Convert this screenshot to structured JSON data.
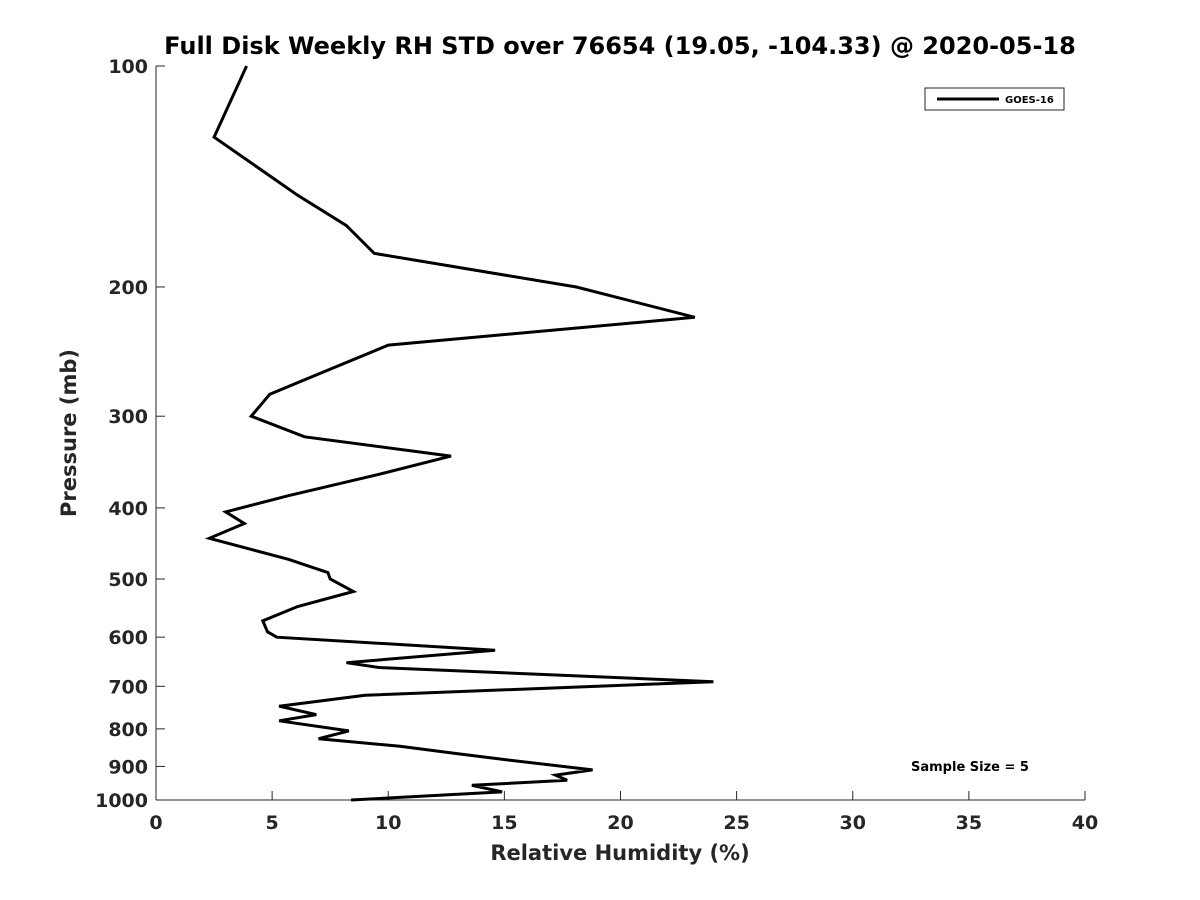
{
  "chart_data": {
    "type": "line",
    "title": "Full Disk Weekly RH STD over 76654 (19.05, -104.33) @ 2020-05-18",
    "xlabel": "Relative Humidity (%)",
    "ylabel": "Pressure (mb)",
    "xlim": [
      0,
      40
    ],
    "ylim": [
      100,
      1000
    ],
    "yscale": "log",
    "y_reversed": true,
    "xticks": [
      0,
      5,
      10,
      15,
      20,
      25,
      30,
      35,
      40
    ],
    "yticks": [
      100,
      200,
      300,
      400,
      500,
      600,
      700,
      800,
      900,
      1000
    ],
    "grid": false,
    "legend_position": "top-right",
    "annotation": "Sample Size = 5",
    "series": [
      {
        "name": "GOES-16",
        "color": "#000000",
        "points": [
          [
            3.9,
            100
          ],
          [
            2.5,
            125
          ],
          [
            6.1,
            150
          ],
          [
            8.2,
            165
          ],
          [
            9.4,
            180
          ],
          [
            18.1,
            200
          ],
          [
            23.2,
            220
          ],
          [
            10.0,
            240
          ],
          [
            4.9,
            280
          ],
          [
            4.1,
            300
          ],
          [
            6.4,
            320
          ],
          [
            12.7,
            340
          ],
          [
            9.6,
            360
          ],
          [
            5.7,
            385
          ],
          [
            3.0,
            405
          ],
          [
            3.8,
            420
          ],
          [
            2.3,
            440
          ],
          [
            5.7,
            470
          ],
          [
            7.4,
            490
          ],
          [
            7.5,
            500
          ],
          [
            8.5,
            520
          ],
          [
            6.1,
            545
          ],
          [
            4.6,
            570
          ],
          [
            4.8,
            590
          ],
          [
            5.2,
            600
          ],
          [
            14.6,
            625
          ],
          [
            8.2,
            650
          ],
          [
            9.6,
            660
          ],
          [
            24.0,
            690
          ],
          [
            9.0,
            720
          ],
          [
            5.3,
            745
          ],
          [
            6.9,
            765
          ],
          [
            5.3,
            780
          ],
          [
            8.3,
            805
          ],
          [
            7.0,
            825
          ],
          [
            10.5,
            845
          ],
          [
            13.0,
            865
          ],
          [
            14.9,
            880
          ],
          [
            18.8,
            910
          ],
          [
            17.2,
            925
          ],
          [
            17.7,
            940
          ],
          [
            13.6,
            955
          ],
          [
            14.9,
            975
          ],
          [
            8.4,
            1000
          ]
        ]
      }
    ]
  }
}
